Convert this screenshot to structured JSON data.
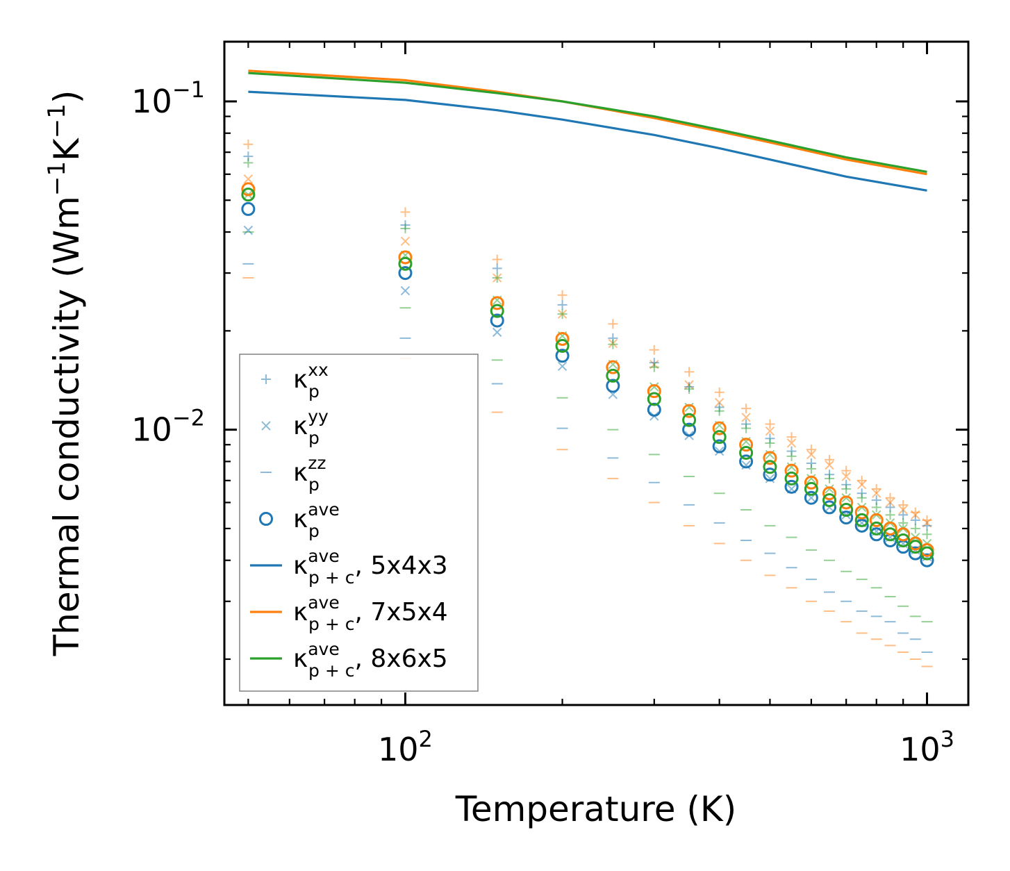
{
  "chart_data": {
    "type": "scatter",
    "title": "",
    "xlabel": "Temperature (K)",
    "ylabel": "Thermal conductivity (Wm",
    "ylabel_parts": [
      "Thermal conductivity (Wm",
      "−1",
      "K",
      "−1",
      ")"
    ],
    "x_scale": "log",
    "y_scale": "log",
    "xlim": [
      45,
      1200
    ],
    "ylim": [
      0.00145,
      0.152
    ],
    "x_ticks": [
      {
        "value": 100,
        "base": "10",
        "exp": "2"
      },
      {
        "value": 1000,
        "base": "10",
        "exp": "3"
      }
    ],
    "y_ticks": [
      {
        "value": 0.01,
        "base": "10",
        "exp": "−2"
      },
      {
        "value": 0.1,
        "base": "10",
        "exp": "−1"
      }
    ],
    "grid": false,
    "legend_position": "lower-left",
    "colors": {
      "5x4x3": "#1f77b4",
      "7x5x4": "#ff7f0e",
      "8x6x5": "#2ca02c",
      "axis": "#000000",
      "legend_border": "#808080"
    },
    "x": [
      50,
      100,
      150,
      200,
      250,
      300,
      350,
      400,
      450,
      500,
      550,
      600,
      650,
      700,
      750,
      800,
      850,
      900,
      950,
      1000
    ],
    "series": [
      {
        "name": "κ_p^xx, 5x4x3",
        "group": "5x4x3",
        "component": "xx",
        "marker": "plus",
        "values": [
          0.068,
          0.042,
          0.031,
          0.024,
          0.019,
          0.016,
          0.0135,
          0.0117,
          0.0104,
          0.0094,
          0.0086,
          0.0079,
          0.0073,
          0.0068,
          0.0064,
          0.0061,
          0.0058,
          0.0055,
          0.0053,
          0.0051
        ]
      },
      {
        "name": "κ_p^yy, 5x4x3",
        "group": "5x4x3",
        "component": "yy",
        "marker": "x",
        "values": [
          0.0405,
          0.0265,
          0.0198,
          0.0156,
          0.0128,
          0.011,
          0.0096,
          0.0086,
          0.0078,
          0.0071,
          0.0066,
          0.0062,
          0.0058,
          0.0055,
          0.0052,
          0.0049,
          0.0047,
          0.0045,
          0.0043,
          0.0041
        ]
      },
      {
        "name": "κ_p^zz, 5x4x3",
        "group": "5x4x3",
        "component": "zz",
        "marker": "hline",
        "values": [
          0.032,
          0.019,
          0.0138,
          0.0101,
          0.0082,
          0.0069,
          0.0059,
          0.0052,
          0.0046,
          0.0042,
          0.0038,
          0.0035,
          0.0032,
          0.003,
          0.0028,
          0.0027,
          0.0026,
          0.0024,
          0.0023,
          0.0021
        ]
      },
      {
        "name": "κ_p^ave, 5x4x3",
        "group": "5x4x3",
        "component": "ave",
        "marker": "circle",
        "values": [
          0.047,
          0.03,
          0.0215,
          0.0168,
          0.0136,
          0.0115,
          0.01,
          0.0089,
          0.008,
          0.0073,
          0.0067,
          0.0062,
          0.0058,
          0.0054,
          0.0051,
          0.0048,
          0.0046,
          0.0044,
          0.0042,
          0.004
        ]
      },
      {
        "name": "κ_p^xx, 7x5x4",
        "group": "7x5x4",
        "component": "xx",
        "marker": "plus",
        "values": [
          0.074,
          0.046,
          0.033,
          0.0257,
          0.021,
          0.0175,
          0.015,
          0.013,
          0.0116,
          0.0104,
          0.0095,
          0.0087,
          0.0081,
          0.0075,
          0.007,
          0.0066,
          0.0062,
          0.0059,
          0.0056,
          0.0053
        ]
      },
      {
        "name": "κ_p^yy, 7x5x4",
        "group": "7x5x4",
        "component": "yy",
        "marker": "x",
        "values": [
          0.058,
          0.0375,
          0.029,
          0.0225,
          0.0183,
          0.0158,
          0.0137,
          0.0121,
          0.0109,
          0.0099,
          0.0091,
          0.0084,
          0.0078,
          0.0072,
          0.0068,
          0.0064,
          0.006,
          0.0057,
          0.0055,
          0.0052
        ]
      },
      {
        "name": "κ_p^zz, 7x5x4",
        "group": "7x5x4",
        "component": "zz",
        "marker": "hline",
        "values": [
          0.029,
          0.0165,
          0.0113,
          0.0087,
          0.0071,
          0.006,
          0.0051,
          0.0045,
          0.004,
          0.0036,
          0.0033,
          0.003,
          0.0028,
          0.0026,
          0.0024,
          0.0023,
          0.0022,
          0.0021,
          0.002,
          0.0019
        ]
      },
      {
        "name": "κ_p^ave, 7x5x4",
        "group": "7x5x4",
        "component": "ave",
        "marker": "circle",
        "values": [
          0.054,
          0.0335,
          0.0243,
          0.0189,
          0.0155,
          0.0131,
          0.0114,
          0.0101,
          0.009,
          0.0082,
          0.0075,
          0.0069,
          0.0064,
          0.006,
          0.0056,
          0.0053,
          0.005,
          0.0048,
          0.0045,
          0.0043
        ]
      },
      {
        "name": "κ_p^xx, 8x6x5",
        "group": "8x6x5",
        "component": "xx",
        "marker": "plus",
        "values": [
          0.065,
          0.041,
          0.029,
          0.0225,
          0.0182,
          0.0155,
          0.0133,
          0.0114,
          0.0101,
          0.0091,
          0.0083,
          0.0076,
          0.0071,
          0.0066,
          0.0062,
          0.0058,
          0.0055,
          0.0052,
          0.005,
          0.0048
        ]
      },
      {
        "name": "κ_p^yy, 8x6x5",
        "group": "8x6x5",
        "component": "yy",
        "marker": "x",
        "values": [
          0.052,
          0.034,
          0.0248,
          0.0193,
          0.0158,
          0.0135,
          0.0117,
          0.0103,
          0.0092,
          0.0084,
          0.0077,
          0.0071,
          0.0066,
          0.0062,
          0.0058,
          0.0055,
          0.0052,
          0.005,
          0.0047,
          0.0045
        ]
      },
      {
        "name": "κ_p^zz, 8x6x5",
        "group": "8x6x5",
        "component": "zz",
        "marker": "hline",
        "values": [
          0.04,
          0.0235,
          0.0163,
          0.0125,
          0.01,
          0.0084,
          0.0072,
          0.0064,
          0.0057,
          0.0051,
          0.0047,
          0.0043,
          0.004,
          0.0037,
          0.0035,
          0.0033,
          0.0031,
          0.0029,
          0.0027,
          0.0026
        ]
      },
      {
        "name": "κ_p^ave, 8x6x5",
        "group": "8x6x5",
        "component": "ave",
        "marker": "circle",
        "values": [
          0.052,
          0.032,
          0.023,
          0.018,
          0.0146,
          0.0124,
          0.0107,
          0.0095,
          0.0085,
          0.0077,
          0.0071,
          0.0066,
          0.0061,
          0.0057,
          0.0053,
          0.005,
          0.0048,
          0.0046,
          0.0044,
          0.0042
        ]
      }
    ],
    "lines": [
      {
        "name": "κ_p+c^ave, 5x4x3",
        "group": "5x4x3",
        "x": [
          50,
          100,
          150,
          200,
          300,
          400,
          500,
          700,
          1000
        ],
        "values": [
          0.107,
          0.101,
          0.094,
          0.088,
          0.079,
          0.072,
          0.0665,
          0.059,
          0.0535
        ]
      },
      {
        "name": "κ_p+c^ave, 7x5x4",
        "group": "7x5x4",
        "x": [
          50,
          100,
          150,
          200,
          300,
          400,
          500,
          700,
          1000
        ],
        "values": [
          0.124,
          0.116,
          0.107,
          0.1,
          0.089,
          0.081,
          0.075,
          0.0665,
          0.06
        ]
      },
      {
        "name": "κ_p+c^ave, 8x6x5",
        "group": "8x6x5",
        "x": [
          50,
          100,
          150,
          200,
          300,
          400,
          500,
          700,
          1000
        ],
        "values": [
          0.122,
          0.114,
          0.106,
          0.1,
          0.09,
          0.082,
          0.076,
          0.0675,
          0.061
        ]
      }
    ],
    "legend": [
      {
        "kind": "plus",
        "color_key": "5x4x3",
        "alpha": 0.5,
        "symbol": "κ",
        "sub": "p",
        "sup": "xx",
        "suffix": ""
      },
      {
        "kind": "x",
        "color_key": "5x4x3",
        "alpha": 0.5,
        "symbol": "κ",
        "sub": "p",
        "sup": "yy",
        "suffix": ""
      },
      {
        "kind": "hline",
        "color_key": "5x4x3",
        "alpha": 0.5,
        "symbol": "κ",
        "sub": "p",
        "sup": "zz",
        "suffix": ""
      },
      {
        "kind": "circle",
        "color_key": "5x4x3",
        "alpha": 1,
        "symbol": "κ",
        "sub": "p",
        "sup": "ave",
        "suffix": ""
      },
      {
        "kind": "line",
        "color_key": "5x4x3",
        "alpha": 1,
        "symbol": "κ",
        "sub": "p + c",
        "sup": "ave",
        "suffix": ", 5x4x3"
      },
      {
        "kind": "line",
        "color_key": "7x5x4",
        "alpha": 1,
        "symbol": "κ",
        "sub": "p + c",
        "sup": "ave",
        "suffix": ", 7x5x4"
      },
      {
        "kind": "line",
        "color_key": "8x6x5",
        "alpha": 1,
        "symbol": "κ",
        "sub": "p + c",
        "sup": "ave",
        "suffix": ", 8x6x5"
      }
    ]
  }
}
